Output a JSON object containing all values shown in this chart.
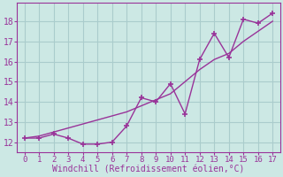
{
  "xlabel": "Windchill (Refroidissement éolien,°C)",
  "bg_color": "#cce8e4",
  "grid_color": "#aacccc",
  "line_color": "#993399",
  "x_data": [
    0,
    1,
    2,
    3,
    4,
    5,
    6,
    7,
    8,
    9,
    10,
    11,
    12,
    13,
    14,
    15,
    16,
    17
  ],
  "y_actual": [
    12.2,
    12.2,
    12.4,
    12.2,
    11.9,
    11.9,
    12.0,
    12.8,
    14.2,
    14.0,
    14.9,
    13.4,
    16.1,
    17.4,
    16.2,
    18.1,
    17.9,
    18.4
  ],
  "y_trend": [
    12.2,
    12.3,
    12.5,
    12.7,
    12.9,
    13.1,
    13.3,
    13.5,
    13.8,
    14.1,
    14.4,
    15.0,
    15.6,
    16.1,
    16.4,
    17.0,
    17.5,
    18.0
  ],
  "xlim": [
    -0.5,
    17.5
  ],
  "ylim": [
    11.5,
    18.9
  ],
  "xticks": [
    0,
    1,
    2,
    3,
    4,
    5,
    6,
    7,
    8,
    9,
    10,
    11,
    12,
    13,
    14,
    15,
    16,
    17
  ],
  "yticks": [
    12,
    13,
    14,
    15,
    16,
    17,
    18
  ]
}
